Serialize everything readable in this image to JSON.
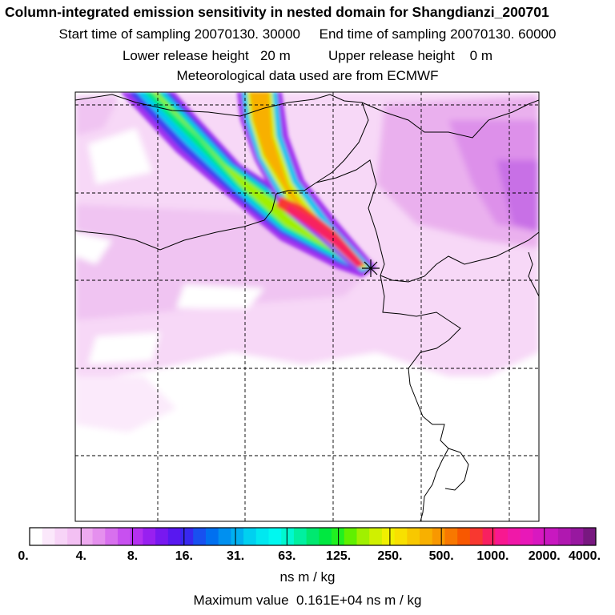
{
  "header": {
    "title": "Column-integrated emission sensitivity in nested domain for Shangdianzi_200701",
    "sampling": "Start time of sampling 20070130. 30000     End time of sampling 20070130. 60000",
    "release": "Lower release height   20 m          Upper release height    0 m",
    "met": "Meteorological data used are from ECMWF"
  },
  "map": {
    "receptor_marker": "receptor-star-icon",
    "grid_style": "dashed"
  },
  "colorbar": {
    "units": "ns m / kg",
    "tick_labels": [
      "0.",
      "4.",
      "8.",
      "16.",
      "31.",
      "63.",
      "125.",
      "250.",
      "500.",
      "1000.",
      "2000.",
      "4000."
    ],
    "colors": [
      "#ffffff",
      "#fbe8fb",
      "#f7d4f7",
      "#f3c0f3",
      "#eeaaf0",
      "#e590ee",
      "#d870ee",
      "#c850f0",
      "#b430f0",
      "#9820f0",
      "#7818f0",
      "#5818f0",
      "#3828f0",
      "#1850f0",
      "#0070f0",
      "#0090f0",
      "#00b0f0",
      "#00d0f0",
      "#00e8f0",
      "#00f8f0",
      "#00f8d0",
      "#00f0a0",
      "#00e870",
      "#00e840",
      "#20f020",
      "#60f000",
      "#a0f000",
      "#d0f000",
      "#f0f000",
      "#f8e000",
      "#f8c800",
      "#f8b000",
      "#f89800",
      "#f87800",
      "#f85800",
      "#f83830",
      "#f82060",
      "#f81890",
      "#f018a8",
      "#e818b8",
      "#d818c0",
      "#c818c0",
      "#b018b0",
      "#9818a0",
      "#781880"
    ]
  },
  "footer": {
    "max_value": "Maximum value  0.161E+04 ns m / kg"
  }
}
